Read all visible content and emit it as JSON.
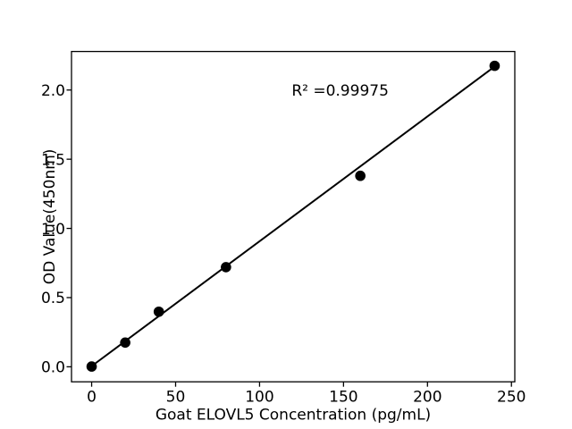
{
  "chart_data": {
    "type": "scatter",
    "title": "",
    "xlabel": "Goat ELOVL5 Concentration (pg/mL)",
    "ylabel": "OD Value(450nm)",
    "x": [
      0,
      20,
      40,
      80,
      160,
      240
    ],
    "y": [
      0.002,
      0.175,
      0.398,
      0.72,
      1.38,
      2.175
    ],
    "fit_line": {
      "x": [
        0,
        240
      ],
      "y": [
        0.005,
        2.17
      ]
    },
    "annotation": {
      "text": "R² =0.99975",
      "x": 148,
      "y": 2.0
    },
    "xticks": [
      "0",
      "50",
      "100",
      "150",
      "200",
      "250"
    ],
    "xtick_values": [
      0,
      50,
      100,
      150,
      200,
      250
    ],
    "yticks": [
      "0.0",
      "0.5",
      "1.0",
      "1.5",
      "2.0"
    ],
    "ytick_values": [
      0.0,
      0.5,
      1.0,
      1.5,
      2.0
    ],
    "xlim": [
      -12,
      252
    ],
    "ylim": [
      -0.1085,
      2.2785
    ],
    "grid": false,
    "legend": null,
    "marker_color": "#000000",
    "line_color": "#000000",
    "axis_color": "#000000",
    "background_color": "#ffffff"
  }
}
